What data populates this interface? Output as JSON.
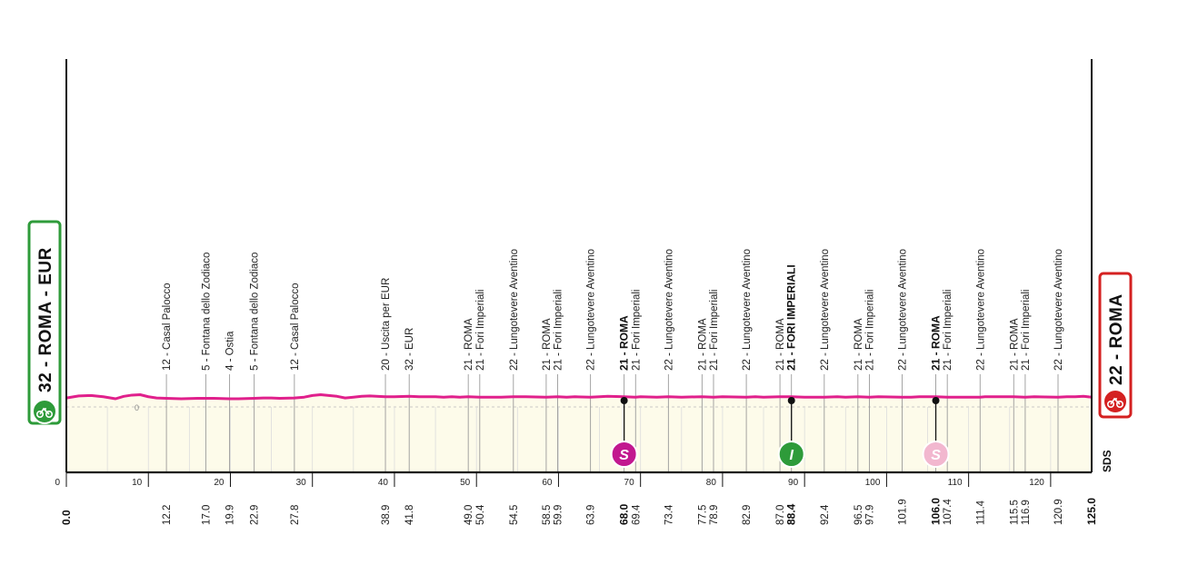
{
  "start": {
    "label": "32 - ROMA - EUR",
    "color": "#2e9b3a",
    "icon": "bicycle-start-icon"
  },
  "finish": {
    "label": "22 - ROMA",
    "color": "#d42121",
    "icon": "bicycle-finish-icon"
  },
  "brand": "SDS",
  "zero_label": "0",
  "chart_data": {
    "type": "area",
    "title": "",
    "xlabel": "",
    "ylabel": "",
    "xlim": [
      0,
      125
    ],
    "x_ticks": [
      0,
      10,
      20,
      30,
      40,
      50,
      60,
      70,
      80,
      90,
      100,
      110,
      120
    ],
    "profile": {
      "line_color": "#e0208c",
      "fill_color": "#fdfbea",
      "x": [
        0,
        1.5,
        3,
        4.5,
        6,
        7,
        8,
        9,
        10,
        11,
        12.2,
        14,
        16,
        17,
        18,
        19.9,
        21,
        22.9,
        24,
        25,
        26,
        27.8,
        29,
        30,
        31,
        32,
        33,
        34,
        35,
        36,
        37,
        38.9,
        40,
        41.8,
        43,
        45,
        46,
        47,
        48,
        49,
        50.4,
        52,
        53,
        54.5,
        56,
        58.5,
        59.9,
        61,
        62,
        63.9,
        65,
        66,
        68,
        69.4,
        70,
        72,
        73.4,
        75,
        77.5,
        78.9,
        80,
        82.9,
        84,
        85,
        87,
        88.4,
        90,
        92.4,
        94,
        95,
        96.5,
        97.9,
        99,
        101.9,
        103,
        104,
        106,
        107.4,
        109,
        111.4,
        112,
        113,
        115.5,
        116.9,
        118,
        120.9,
        122,
        123,
        124,
        125
      ],
      "y": [
        22,
        27,
        28,
        25,
        20,
        26,
        29,
        30,
        25,
        22,
        21,
        20,
        21,
        21,
        21,
        20,
        20,
        21,
        22,
        22,
        21,
        22,
        24,
        28,
        30,
        28,
        26,
        22,
        24,
        26,
        27,
        25,
        25,
        26,
        25,
        25,
        24,
        25,
        24,
        25,
        24,
        24,
        24,
        25,
        25,
        24,
        25,
        24,
        25,
        24,
        25,
        26,
        25,
        24,
        25,
        24,
        25,
        24,
        25,
        24,
        25,
        24,
        25,
        24,
        25,
        25,
        24,
        24,
        25,
        24,
        25,
        24,
        25,
        24,
        24,
        25,
        25,
        24,
        24,
        24,
        25,
        25,
        25,
        24,
        25,
        24,
        25,
        25,
        26,
        24
      ]
    },
    "waypoints": [
      {
        "km": "0.0",
        "x": 0,
        "name": "",
        "bold": true
      },
      {
        "km": "12.2",
        "x": 12.2,
        "name": "12 - Casal Palocco",
        "bold": false
      },
      {
        "km": "17.0",
        "x": 17.0,
        "name": "5 - Fontana dello Zodiaco",
        "bold": false
      },
      {
        "km": "19.9",
        "x": 19.9,
        "name": "4 - Ostia",
        "bold": false
      },
      {
        "km": "22.9",
        "x": 22.9,
        "name": "5 - Fontana dello Zodiaco",
        "bold": false
      },
      {
        "km": "27.8",
        "x": 27.8,
        "name": "12 - Casal Palocco",
        "bold": false
      },
      {
        "km": "38.9",
        "x": 38.9,
        "name": "20 - Uscita per EUR",
        "bold": false
      },
      {
        "km": "41.8",
        "x": 41.8,
        "name": "32 - EUR",
        "bold": false
      },
      {
        "km": "49.0",
        "x": 49.0,
        "name": "21 - ROMA",
        "bold": false
      },
      {
        "km": "50.4",
        "x": 50.4,
        "name": "21 - Fori Imperiali",
        "bold": false
      },
      {
        "km": "54.5",
        "x": 54.5,
        "name": "22 - Lungotevere Aventino",
        "bold": false
      },
      {
        "km": "58.5",
        "x": 58.5,
        "name": "21 - ROMA",
        "bold": false
      },
      {
        "km": "59.9",
        "x": 59.9,
        "name": "21 - Fori Imperiali",
        "bold": false
      },
      {
        "km": "63.9",
        "x": 63.9,
        "name": "22 - Lungotevere Aventino",
        "bold": false
      },
      {
        "km": "68.0",
        "x": 68.0,
        "name": "21 - ROMA",
        "bold": true
      },
      {
        "km": "69.4",
        "x": 69.4,
        "name": "21 - Fori Imperiali",
        "bold": false
      },
      {
        "km": "73.4",
        "x": 73.4,
        "name": "22 - Lungotevere Aventino",
        "bold": false
      },
      {
        "km": "77.5",
        "x": 77.5,
        "name": "21 - ROMA",
        "bold": false
      },
      {
        "km": "78.9",
        "x": 78.9,
        "name": "21 - Fori Imperiali",
        "bold": false
      },
      {
        "km": "82.9",
        "x": 82.9,
        "name": "22 - Lungotevere Aventino",
        "bold": false
      },
      {
        "km": "87.0",
        "x": 87.0,
        "name": "21 - ROMA",
        "bold": false
      },
      {
        "km": "88.4",
        "x": 88.4,
        "name": "21 - FORI IMPERIALI",
        "bold": true
      },
      {
        "km": "92.4",
        "x": 92.4,
        "name": "22 - Lungotevere Aventino",
        "bold": false
      },
      {
        "km": "96.5",
        "x": 96.5,
        "name": "21 - ROMA",
        "bold": false
      },
      {
        "km": "97.9",
        "x": 97.9,
        "name": "21 - Fori Imperiali",
        "bold": false
      },
      {
        "km": "101.9",
        "x": 101.9,
        "name": "22 - Lungotevere Aventino",
        "bold": false
      },
      {
        "km": "106.0",
        "x": 106.0,
        "name": "21 - ROMA",
        "bold": true
      },
      {
        "km": "107.4",
        "x": 107.4,
        "name": "21 - Fori Imperiali",
        "bold": false
      },
      {
        "km": "111.4",
        "x": 111.4,
        "name": "22 - Lungotevere Aventino",
        "bold": false
      },
      {
        "km": "115.5",
        "x": 115.5,
        "name": "21 - ROMA",
        "bold": false
      },
      {
        "km": "116.9",
        "x": 116.9,
        "name": "21 - Fori Imperiali",
        "bold": false
      },
      {
        "km": "120.9",
        "x": 120.9,
        "name": "22 - Lungotevere Aventino",
        "bold": false
      },
      {
        "km": "125.0",
        "x": 125.0,
        "name": "",
        "bold": true
      }
    ],
    "markers": [
      {
        "x": 68.0,
        "letter": "S",
        "color": "#c2188f",
        "text_color": "#ffffff",
        "icon": "sprint-marker-icon"
      },
      {
        "x": 88.4,
        "letter": "I",
        "color": "#2e9b3a",
        "text_color": "#ffffff",
        "icon": "intermediate-marker-icon"
      },
      {
        "x": 106.0,
        "letter": "S",
        "color": "#f2b7cf",
        "text_color": "#ffffff",
        "icon": "sprint-marker-icon"
      }
    ]
  }
}
